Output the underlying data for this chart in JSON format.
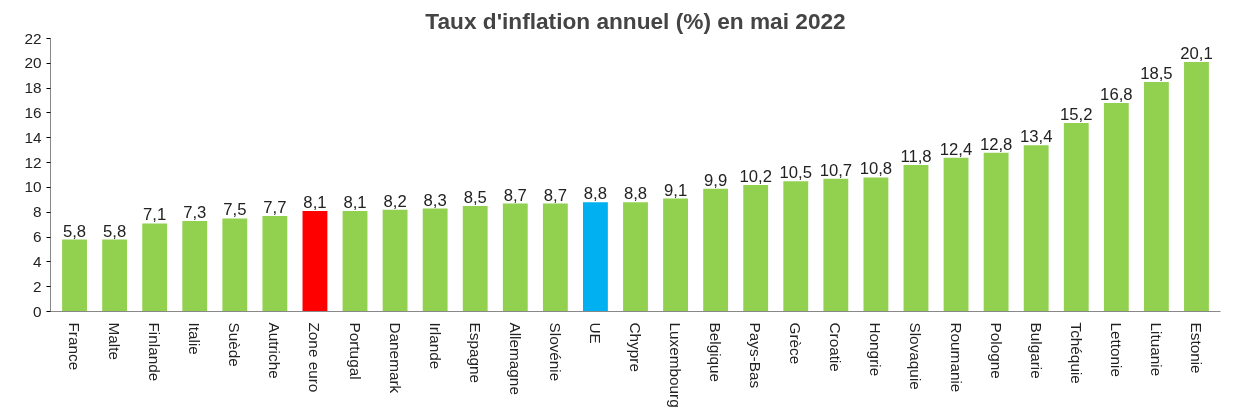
{
  "chart_data": {
    "type": "bar",
    "title": "Taux d'inflation annuel (%) en mai 2022",
    "categories": [
      "France",
      "Malte",
      "Finlande",
      "Italie",
      "Suède",
      "Autriche",
      "Zone euro",
      "Portugal",
      "Danemark",
      "Irlande",
      "Espagne",
      "Allemagne",
      "Slovénie",
      "UE",
      "Chypre",
      "Luxembourg",
      "Belgique",
      "Pays-Bas",
      "Grèce",
      "Croatie",
      "Hongrie",
      "Slovaquie",
      "Roumanie",
      "Pologne",
      "Bulgarie",
      "Tchéquie",
      "Lettonie",
      "Lituanie",
      "Estonie"
    ],
    "values": [
      5.8,
      5.8,
      7.1,
      7.3,
      7.5,
      7.7,
      8.1,
      8.1,
      8.2,
      8.3,
      8.5,
      8.7,
      8.7,
      8.8,
      8.8,
      9.1,
      9.9,
      10.2,
      10.5,
      10.7,
      10.8,
      11.8,
      12.4,
      12.8,
      13.4,
      15.2,
      16.8,
      18.5,
      20.1
    ],
    "value_labels": [
      "5,8",
      "5,8",
      "7,1",
      "7,3",
      "7,5",
      "7,7",
      "8,1",
      "8,1",
      "8,2",
      "8,3",
      "8,5",
      "8,7",
      "8,7",
      "8,8",
      "8,8",
      "9,1",
      "9,9",
      "10,2",
      "10,5",
      "10,7",
      "10,8",
      "11,8",
      "12,4",
      "12,8",
      "13,4",
      "15,2",
      "16,8",
      "18,5",
      "20,1"
    ],
    "colors": [
      "#92d050",
      "#92d050",
      "#92d050",
      "#92d050",
      "#92d050",
      "#92d050",
      "#ff0000",
      "#92d050",
      "#92d050",
      "#92d050",
      "#92d050",
      "#92d050",
      "#92d050",
      "#00b0f0",
      "#92d050",
      "#92d050",
      "#92d050",
      "#92d050",
      "#92d050",
      "#92d050",
      "#92d050",
      "#92d050",
      "#92d050",
      "#92d050",
      "#92d050",
      "#92d050",
      "#92d050",
      "#92d050",
      "#92d050"
    ],
    "ylim": [
      0,
      22
    ],
    "yticks": [
      0,
      2,
      4,
      6,
      8,
      10,
      12,
      14,
      16,
      18,
      20,
      22
    ],
    "grid": false
  }
}
